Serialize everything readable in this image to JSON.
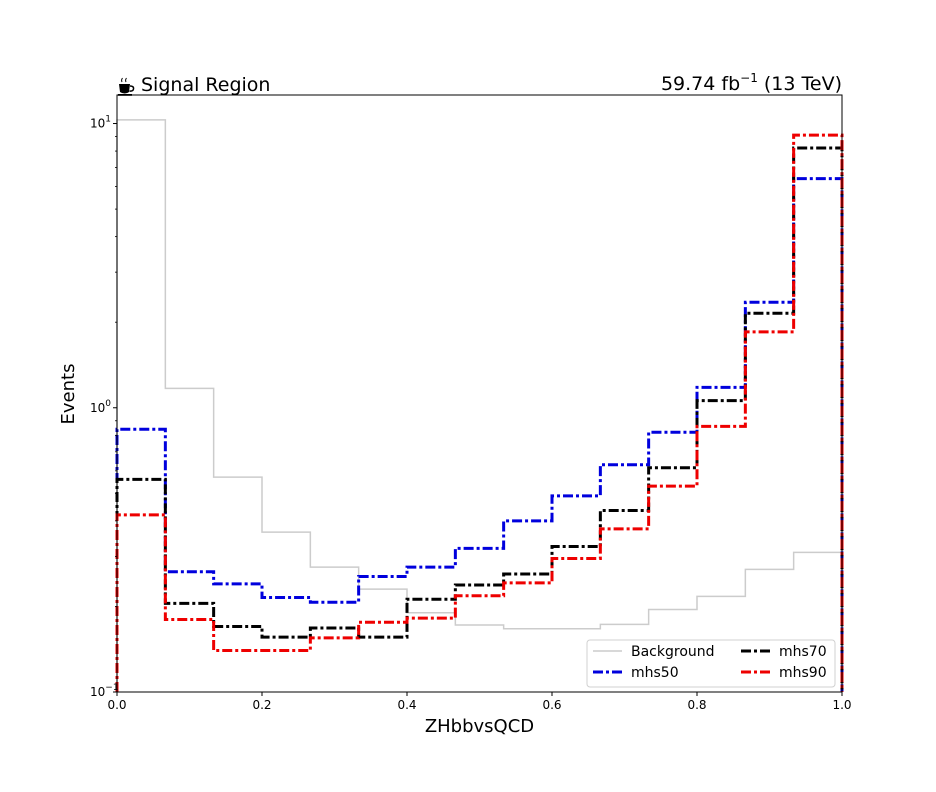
{
  "chart_data": {
    "type": "line",
    "drawstyle": "step-histogram",
    "title_left": "Signal Region",
    "title_left_icon": "hot-beverage-icon",
    "title_right_lumi": "59.74 fb",
    "title_right_exp": "−1",
    "title_right_energy": " (13 TeV)",
    "xlabel": "ZHbbvsQCD",
    "ylabel": "Events",
    "xlim": [
      0,
      1
    ],
    "ylim": [
      0.1,
      12.6
    ],
    "yscale": "log",
    "xticks": [
      0,
      0.2,
      0.4,
      0.6,
      0.8,
      1.0
    ],
    "xtick_labels": [
      "0.0",
      "0.2",
      "0.4",
      "0.6",
      "0.8",
      "1.0"
    ],
    "ytick_labels": [
      {
        "value": 0.1,
        "base": "10",
        "exp": "−1"
      },
      {
        "value": 1,
        "base": "10",
        "exp": "0"
      },
      {
        "value": 10,
        "base": "10",
        "exp": "1"
      }
    ],
    "bin_edges": [
      0,
      0.0667,
      0.1333,
      0.2,
      0.2667,
      0.3333,
      0.4,
      0.4667,
      0.5333,
      0.6,
      0.6667,
      0.7333,
      0.8,
      0.8667,
      0.9333,
      1.0
    ],
    "grid": false,
    "legend_position": "lower-right",
    "legend_columns": 2,
    "series": [
      {
        "name": "Background",
        "color": "#cccccc",
        "style": "solid",
        "values": [
          10.3,
          1.17,
          0.57,
          0.365,
          0.275,
          0.23,
          0.19,
          0.172,
          0.167,
          0.167,
          0.173,
          0.195,
          0.217,
          0.27,
          0.31
        ]
      },
      {
        "name": "mhs50",
        "color": "#0000dd",
        "style": "dashdot",
        "values": [
          0.84,
          0.265,
          0.24,
          0.215,
          0.207,
          0.255,
          0.275,
          0.32,
          0.4,
          0.49,
          0.63,
          0.82,
          1.18,
          2.35,
          6.4
        ]
      },
      {
        "name": "mhs70",
        "color": "#000000",
        "style": "dashdot",
        "values": [
          0.56,
          0.205,
          0.17,
          0.156,
          0.168,
          0.156,
          0.212,
          0.238,
          0.26,
          0.325,
          0.435,
          0.615,
          1.06,
          2.15,
          8.2
        ]
      },
      {
        "name": "mhs90",
        "color": "#ee0000",
        "style": "dashdot",
        "values": [
          0.42,
          0.18,
          0.14,
          0.14,
          0.155,
          0.176,
          0.182,
          0.218,
          0.242,
          0.295,
          0.375,
          0.53,
          0.86,
          1.85,
          9.1
        ]
      }
    ]
  }
}
